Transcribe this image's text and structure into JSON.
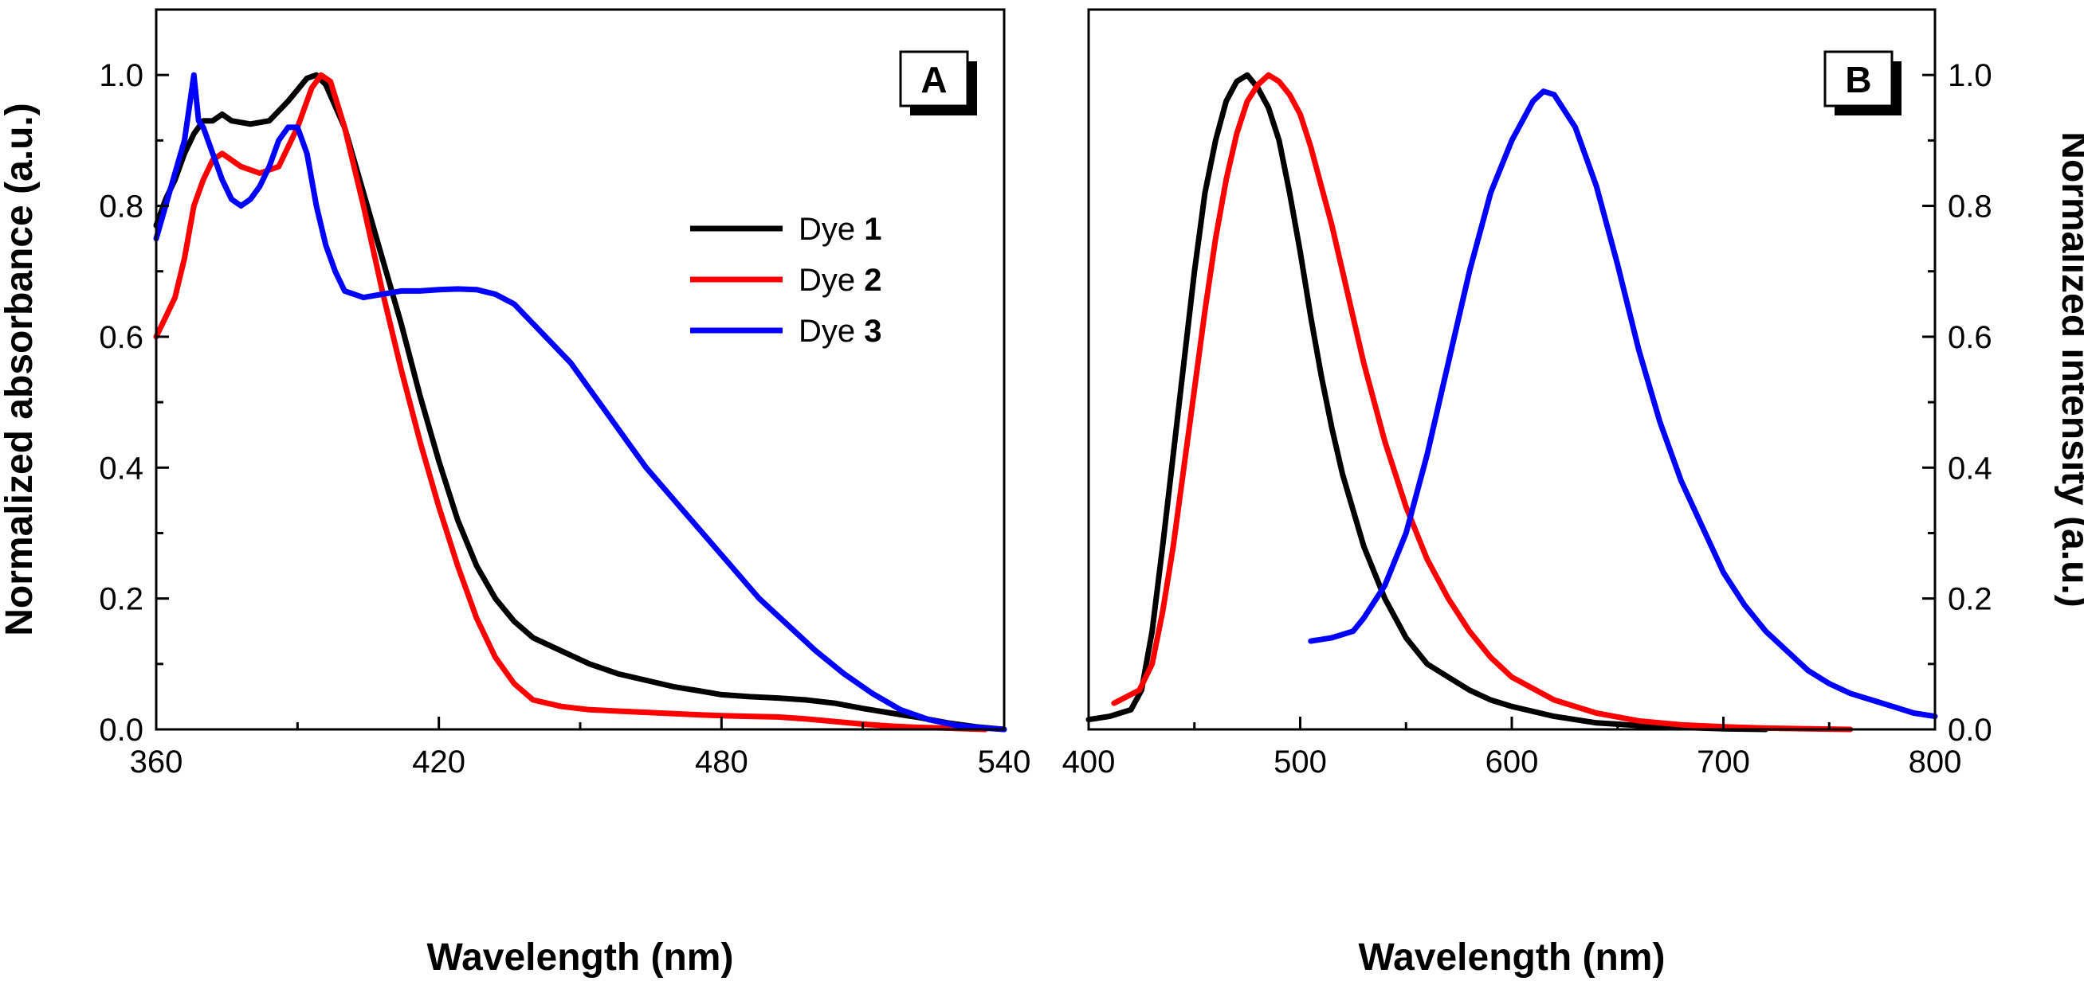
{
  "figure": {
    "background": "#ffffff",
    "axis_color": "#000000"
  },
  "chart_data": [
    {
      "type": "line",
      "panel_label": "A",
      "xlabel": "Wavelength (nm)",
      "ylabel": "Normalized absorbance (a.u.)",
      "xlim": [
        360,
        540
      ],
      "ylim": [
        0,
        1.1
      ],
      "xticks": [
        360,
        420,
        480,
        540
      ],
      "xtick_labels": [
        "360",
        "420",
        "480",
        "540"
      ],
      "xminor_step": 30,
      "yticks": [
        0,
        0.2,
        0.4,
        0.6,
        0.8,
        1.0
      ],
      "ytick_labels": [
        "0.0",
        "0.2",
        "0.4",
        "0.6",
        "0.8",
        "1.0"
      ],
      "yminor_step": 0.1,
      "y_axis_side": "left",
      "legend": {
        "placement": "center-right",
        "entries": [
          {
            "prefix": "Dye ",
            "number": "1",
            "color": "#000000"
          },
          {
            "prefix": "Dye ",
            "number": "2",
            "color": "#ff0000"
          },
          {
            "prefix": "Dye ",
            "number": "3",
            "color": "#0000ff"
          }
        ]
      },
      "series": [
        {
          "name": "Dye 1",
          "color": "#000000",
          "x": [
            360,
            362,
            364,
            366,
            368,
            370,
            372,
            374,
            376,
            380,
            384,
            388,
            392,
            394,
            396,
            400,
            404,
            408,
            412,
            416,
            420,
            424,
            428,
            432,
            436,
            440,
            446,
            452,
            458,
            464,
            470,
            476,
            480,
            486,
            492,
            498,
            504,
            510,
            516,
            522,
            528,
            534,
            540
          ],
          "y": [
            0.77,
            0.81,
            0.84,
            0.88,
            0.91,
            0.93,
            0.93,
            0.94,
            0.93,
            0.925,
            0.93,
            0.96,
            0.995,
            1.0,
            0.985,
            0.92,
            0.82,
            0.72,
            0.62,
            0.51,
            0.41,
            0.32,
            0.25,
            0.2,
            0.165,
            0.14,
            0.12,
            0.1,
            0.085,
            0.075,
            0.065,
            0.058,
            0.053,
            0.05,
            0.048,
            0.045,
            0.04,
            0.032,
            0.025,
            0.018,
            0.01,
            0.004,
            0.0
          ]
        },
        {
          "name": "Dye 2",
          "color": "#ff0000",
          "x": [
            360,
            362,
            364,
            366,
            368,
            370,
            372,
            374,
            378,
            382,
            386,
            390,
            393,
            395,
            397,
            400,
            404,
            408,
            412,
            416,
            420,
            424,
            428,
            432,
            436,
            440,
            446,
            452,
            458,
            464,
            470,
            476,
            480,
            486,
            492,
            498,
            504,
            510,
            516,
            522,
            528,
            532,
            536
          ],
          "y": [
            0.6,
            0.63,
            0.66,
            0.72,
            0.8,
            0.84,
            0.87,
            0.88,
            0.86,
            0.85,
            0.86,
            0.92,
            0.98,
            1.0,
            0.99,
            0.92,
            0.8,
            0.67,
            0.55,
            0.44,
            0.34,
            0.25,
            0.17,
            0.11,
            0.07,
            0.045,
            0.035,
            0.03,
            0.028,
            0.026,
            0.024,
            0.022,
            0.021,
            0.02,
            0.019,
            0.016,
            0.012,
            0.008,
            0.005,
            0.003,
            0.002,
            0.001,
            0.0
          ]
        },
        {
          "name": "Dye 3",
          "color": "#0000ff",
          "x": [
            360,
            362,
            364,
            366,
            367,
            368,
            369,
            370,
            372,
            374,
            376,
            378,
            380,
            382,
            384,
            386,
            388,
            390,
            392,
            394,
            396,
            398,
            400,
            404,
            408,
            412,
            416,
            420,
            424,
            428,
            432,
            436,
            440,
            444,
            448,
            452,
            456,
            460,
            464,
            470,
            476,
            482,
            488,
            494,
            500,
            506,
            512,
            518,
            524,
            530,
            536,
            540
          ],
          "y": [
            0.75,
            0.8,
            0.85,
            0.9,
            0.95,
            1.0,
            0.93,
            0.92,
            0.88,
            0.84,
            0.81,
            0.8,
            0.81,
            0.83,
            0.86,
            0.9,
            0.92,
            0.92,
            0.88,
            0.8,
            0.74,
            0.7,
            0.67,
            0.66,
            0.665,
            0.67,
            0.67,
            0.672,
            0.673,
            0.672,
            0.665,
            0.65,
            0.62,
            0.59,
            0.56,
            0.52,
            0.48,
            0.44,
            0.4,
            0.35,
            0.3,
            0.25,
            0.2,
            0.16,
            0.12,
            0.085,
            0.055,
            0.03,
            0.015,
            0.006,
            0.002,
            0.0
          ]
        }
      ]
    },
    {
      "type": "line",
      "panel_label": "B",
      "xlabel": "Wavelength (nm)",
      "ylabel": "Normalized intensity (a.u.)",
      "xlim": [
        400,
        800
      ],
      "ylim": [
        0,
        1.1
      ],
      "xticks": [
        400,
        500,
        600,
        700,
        800
      ],
      "xtick_labels": [
        "400",
        "500",
        "600",
        "700",
        "800"
      ],
      "xminor_step": 50,
      "yticks": [
        0,
        0.2,
        0.4,
        0.6,
        0.8,
        1.0
      ],
      "ytick_labels": [
        "0.0",
        "0.2",
        "0.4",
        "0.6",
        "0.8",
        "1.0"
      ],
      "yminor_step": 0.1,
      "y_axis_side": "right",
      "series": [
        {
          "name": "Dye 1",
          "color": "#000000",
          "x": [
            400,
            410,
            420,
            425,
            430,
            435,
            440,
            445,
            450,
            455,
            460,
            465,
            470,
            475,
            480,
            485,
            490,
            495,
            500,
            505,
            510,
            515,
            520,
            530,
            540,
            550,
            560,
            570,
            580,
            590,
            600,
            620,
            640,
            660,
            680,
            700,
            720
          ],
          "y": [
            0.015,
            0.02,
            0.03,
            0.06,
            0.15,
            0.28,
            0.42,
            0.56,
            0.7,
            0.82,
            0.9,
            0.96,
            0.99,
            1.0,
            0.98,
            0.95,
            0.9,
            0.82,
            0.73,
            0.63,
            0.54,
            0.46,
            0.39,
            0.28,
            0.2,
            0.14,
            0.1,
            0.08,
            0.06,
            0.045,
            0.035,
            0.02,
            0.01,
            0.006,
            0.003,
            0.001,
            0.0
          ]
        },
        {
          "name": "Dye 2",
          "color": "#ff0000",
          "x": [
            412,
            418,
            424,
            430,
            435,
            440,
            445,
            450,
            455,
            460,
            465,
            470,
            475,
            480,
            485,
            490,
            495,
            500,
            505,
            510,
            515,
            520,
            530,
            540,
            550,
            560,
            570,
            580,
            590,
            600,
            620,
            640,
            660,
            680,
            700,
            720,
            740,
            760
          ],
          "y": [
            0.04,
            0.05,
            0.06,
            0.1,
            0.18,
            0.28,
            0.4,
            0.52,
            0.64,
            0.75,
            0.84,
            0.91,
            0.96,
            0.985,
            1.0,
            0.99,
            0.97,
            0.94,
            0.89,
            0.83,
            0.77,
            0.7,
            0.56,
            0.44,
            0.34,
            0.26,
            0.2,
            0.15,
            0.11,
            0.08,
            0.045,
            0.025,
            0.013,
            0.007,
            0.004,
            0.002,
            0.001,
            0.0
          ]
        },
        {
          "name": "Dye 3",
          "color": "#0000ff",
          "x": [
            505,
            515,
            525,
            530,
            540,
            550,
            560,
            570,
            580,
            590,
            600,
            610,
            615,
            620,
            630,
            640,
            650,
            660,
            670,
            680,
            690,
            700,
            710,
            720,
            730,
            740,
            750,
            760,
            770,
            780,
            790,
            800
          ],
          "y": [
            0.135,
            0.14,
            0.15,
            0.17,
            0.22,
            0.3,
            0.42,
            0.56,
            0.7,
            0.82,
            0.9,
            0.96,
            0.975,
            0.97,
            0.92,
            0.83,
            0.71,
            0.58,
            0.47,
            0.38,
            0.31,
            0.24,
            0.19,
            0.15,
            0.12,
            0.09,
            0.07,
            0.055,
            0.045,
            0.035,
            0.025,
            0.02
          ]
        }
      ]
    }
  ]
}
